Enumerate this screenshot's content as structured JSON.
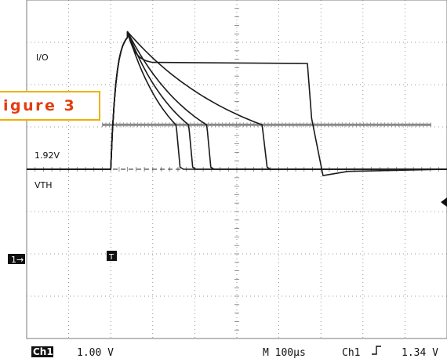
{
  "chart_data": {
    "type": "line",
    "annotations": {
      "io_label": "I/O",
      "voltage_label": "1.92V",
      "vth_label": "VTH",
      "figure_label": "igure 3"
    },
    "status_bar": {
      "channel": "Ch1",
      "scale": "1.00 V",
      "timebase": "M 100µs",
      "trigger_channel": "Ch1",
      "trigger_level": "1.34 V"
    },
    "markers": {
      "ground_marker": "1→",
      "trigger_marker": "T"
    },
    "colors": {
      "trace": "#1a1a1a",
      "grid": "#7a7a7a",
      "threshold": "#8a8a8a",
      "label_border": "#f0b000",
      "label_text": "#e33d10"
    },
    "grid": true,
    "xlim": [
      0,
      1000
    ],
    "ylim": [
      -4,
      4
    ],
    "rise_time_us": 40,
    "peak_v": 3.25,
    "io_v": 2.5,
    "vth_v": 1.05,
    "series": [
      {
        "decay_tau_us": 10,
        "threshold_cross_us": 155,
        "fall_end_us": 165
      },
      {
        "decay_tau_us": 20,
        "threshold_cross_us": 185,
        "fall_end_us": 195
      },
      {
        "decay_tau_us": 40,
        "threshold_cross_us": 228,
        "fall_end_us": 238
      },
      {
        "decay_tau_us": 90,
        "threshold_cross_us": 360,
        "fall_end_us": 372
      },
      {
        "decay_tau_us": 0,
        "threshold_cross_us": 428,
        "fall_end_us": 445,
        "flat_top_v": 2.5
      }
    ]
  }
}
